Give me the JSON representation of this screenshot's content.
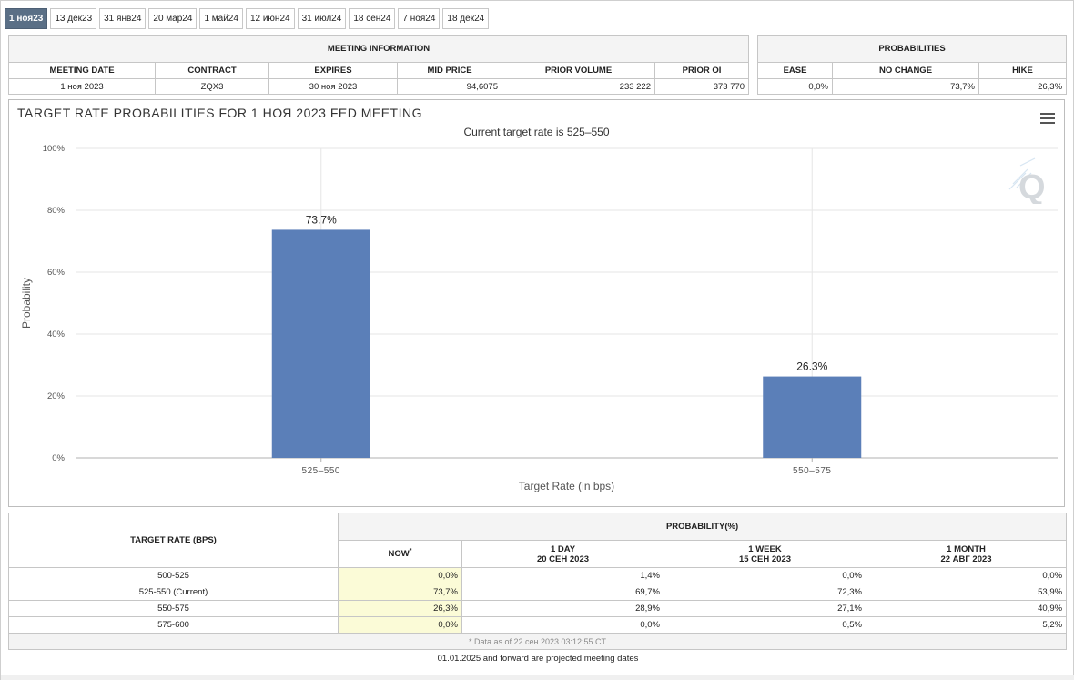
{
  "tabs": [
    "1 ноя23",
    "13 дек23",
    "31 янв24",
    "20 мар24",
    "1 май24",
    "12 июн24",
    "31 июл24",
    "18 сен24",
    "7 ноя24",
    "18 дек24"
  ],
  "active_tab": 0,
  "meeting": {
    "header": "MEETING INFORMATION",
    "columns": [
      "MEETING DATE",
      "CONTRACT",
      "EXPIRES",
      "MID PRICE",
      "PRIOR VOLUME",
      "PRIOR OI"
    ],
    "row": [
      "1 ноя 2023",
      "ZQX3",
      "30 ноя 2023",
      "94,6075",
      "233 222",
      "373 770"
    ]
  },
  "probabilities": {
    "header": "PROBABILITIES",
    "columns": [
      "EASE",
      "NO CHANGE",
      "HIKE"
    ],
    "row": [
      "0,0%",
      "73,7%",
      "26,3%"
    ]
  },
  "chart_title": "TARGET RATE PROBABILITIES FOR 1 НОЯ 2023 FED MEETING",
  "chart_subtitle": "Current target rate is 525–550",
  "chart_data": {
    "type": "bar",
    "title": "TARGET RATE PROBABILITIES FOR 1 НОЯ 2023 FED MEETING",
    "subtitle": "Current target rate is 525–550",
    "categories": [
      "525–550",
      "550–575"
    ],
    "values": [
      73.7,
      26.3
    ],
    "data_labels": [
      "73.7%",
      "26.3%"
    ],
    "xlabel": "Target Rate (in bps)",
    "ylabel": "Probability",
    "ylim": [
      0,
      100
    ],
    "yticks": [
      "0%",
      "20%",
      "40%",
      "60%",
      "80%",
      "100%"
    ],
    "ytick_values": [
      0,
      20,
      40,
      60,
      80,
      100
    ],
    "grid": true,
    "bar_color": "#5b7fb8"
  },
  "bottom": {
    "col1_header": "TARGET RATE (BPS)",
    "group_header": "PROBABILITY(%)",
    "subcols": [
      {
        "line1": "NOW",
        "line2": "",
        "star": "*"
      },
      {
        "line1": "1 DAY",
        "line2": "20 СЕН 2023",
        "star": ""
      },
      {
        "line1": "1 WEEK",
        "line2": "15 СЕН 2023",
        "star": ""
      },
      {
        "line1": "1 MONTH",
        "line2": "22 АВГ 2023",
        "star": ""
      }
    ],
    "rows": [
      {
        "rate": "500-525",
        "values": [
          "0,0%",
          "1,4%",
          "0,0%",
          "0,0%"
        ]
      },
      {
        "rate": "525-550 (Current)",
        "values": [
          "73,7%",
          "69,7%",
          "72,3%",
          "53,9%"
        ]
      },
      {
        "rate": "550-575",
        "values": [
          "26,3%",
          "28,9%",
          "27,1%",
          "40,9%"
        ]
      },
      {
        "rate": "575-600",
        "values": [
          "0,0%",
          "0,0%",
          "0,5%",
          "5,2%"
        ]
      }
    ],
    "note": "* Data as of 22 сен 2023 03:12:55 CT"
  },
  "footer_note": "01.01.2025 and forward are projected meeting dates",
  "icons": {
    "menu": "hamburger-menu-icon",
    "logo": "quikstrike-q-logo-icon"
  }
}
